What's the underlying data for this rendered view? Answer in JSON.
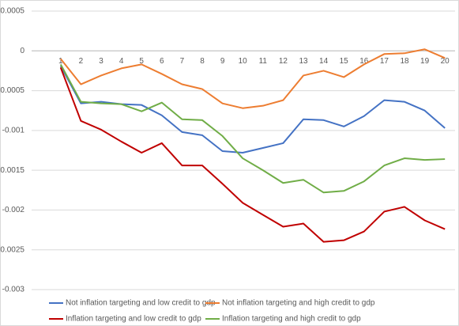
{
  "chart_data": {
    "type": "line",
    "categories": [
      1,
      2,
      3,
      4,
      5,
      6,
      7,
      8,
      9,
      10,
      11,
      12,
      13,
      14,
      15,
      16,
      17,
      18,
      19,
      20
    ],
    "ylim": [
      -0.003,
      0.0005
    ],
    "yticks": [
      0.0005,
      0,
      -0.0005,
      -0.001,
      -0.0015,
      -0.002,
      -0.0025,
      -0.003
    ],
    "grid": true,
    "legend": "bottom",
    "series": [
      {
        "name": "Not inflation targeting and  low credit to gdp",
        "color": "#4472c4",
        "values": [
          -0.00019,
          -0.00066,
          -0.00064,
          -0.00067,
          -0.00068,
          -0.00081,
          -0.00102,
          -0.00106,
          -0.00126,
          -0.00128,
          -0.00122,
          -0.00116,
          -0.00086,
          -0.00087,
          -0.00095,
          -0.00082,
          -0.00062,
          -0.00064,
          -0.00075,
          -0.00097
        ]
      },
      {
        "name": "Not inflation targeting and  high credit to gdp",
        "color": "#ed7d31",
        "values": [
          -0.0001,
          -0.00042,
          -0.00031,
          -0.00022,
          -0.00017,
          -0.00029,
          -0.00042,
          -0.00048,
          -0.00066,
          -0.00072,
          -0.00069,
          -0.00062,
          -0.00031,
          -0.00025,
          -0.00033,
          -0.00017,
          -4e-05,
          -3e-05,
          2e-05,
          -9e-05
        ]
      },
      {
        "name": "Inflation targeting and  low credit to gdp",
        "color": "#c00000",
        "values": [
          -0.00021,
          -0.00088,
          -0.00099,
          -0.00114,
          -0.00128,
          -0.00116,
          -0.00144,
          -0.00144,
          -0.00167,
          -0.00191,
          -0.00206,
          -0.00221,
          -0.00217,
          -0.0024,
          -0.00238,
          -0.00227,
          -0.00202,
          -0.00196,
          -0.00213,
          -0.00224
        ]
      },
      {
        "name": "Inflation targeting and  high credit to gdp",
        "color": "#70ad47",
        "values": [
          -0.00017,
          -0.00064,
          -0.00066,
          -0.00067,
          -0.00076,
          -0.00065,
          -0.00086,
          -0.00087,
          -0.00107,
          -0.00135,
          -0.0015,
          -0.00166,
          -0.00162,
          -0.00178,
          -0.00176,
          -0.00164,
          -0.00144,
          -0.00135,
          -0.00137,
          -0.00136
        ]
      }
    ]
  }
}
